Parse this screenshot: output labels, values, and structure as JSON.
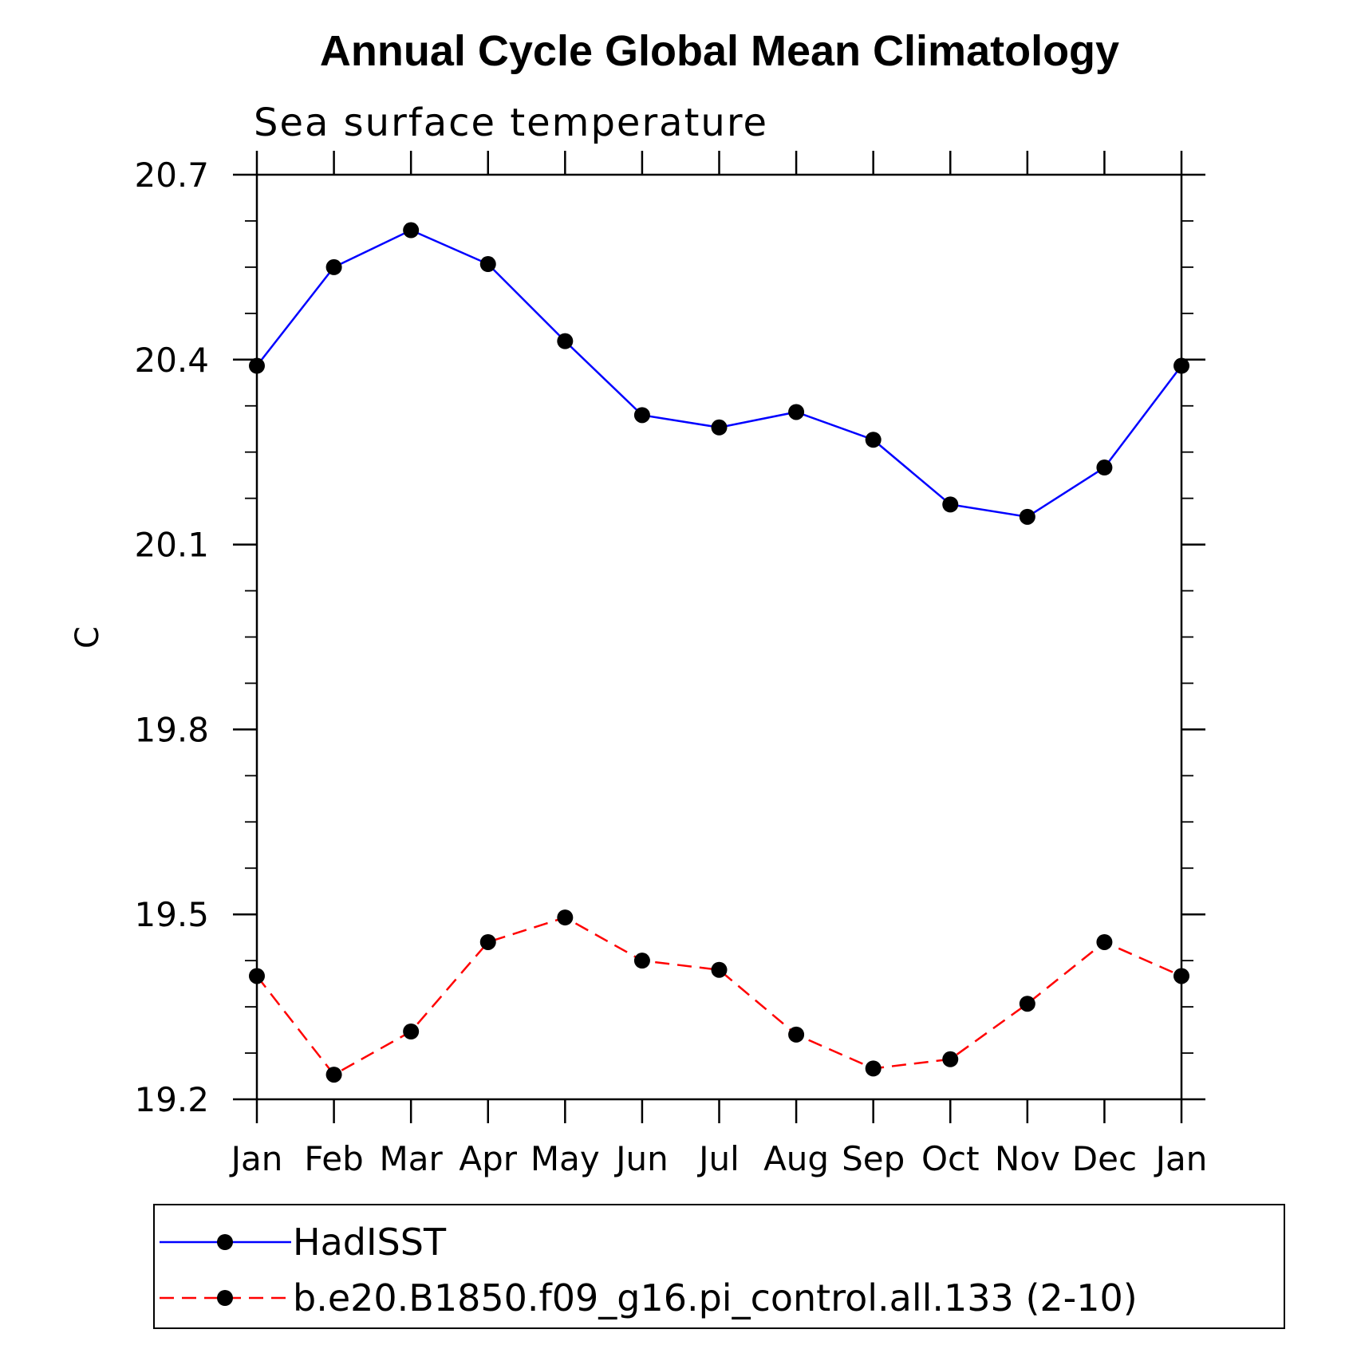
{
  "chart_data": {
    "type": "line",
    "title": "Annual Cycle Global Mean Climatology",
    "subtitle": "Sea surface temperature",
    "ylabel": "C",
    "xlabel": "",
    "categories": [
      "Jan",
      "Feb",
      "Mar",
      "Apr",
      "May",
      "Jun",
      "Jul",
      "Aug",
      "Sep",
      "Oct",
      "Nov",
      "Dec",
      "Jan"
    ],
    "ylim": [
      19.2,
      20.7
    ],
    "yticks": [
      "20.7",
      "20.4",
      "20.1",
      "19.8",
      "19.5",
      "19.2"
    ],
    "grid": false,
    "legend_position": "bottom",
    "series": [
      {
        "name": "HadISST",
        "color": "#0000ff",
        "line_style": "solid",
        "marker": "filled-circle",
        "values": [
          20.39,
          20.55,
          20.61,
          20.555,
          20.43,
          20.31,
          20.29,
          20.315,
          20.27,
          20.165,
          20.145,
          20.225,
          20.39
        ]
      },
      {
        "name": "b.e20.B1850.f09_g16.pi_control.all.133 (2-10)",
        "color": "#ff0000",
        "line_style": "dashed",
        "marker": "filled-circle",
        "values": [
          19.4,
          19.24,
          19.31,
          19.455,
          19.495,
          19.425,
          19.41,
          19.305,
          19.25,
          19.265,
          19.355,
          19.455,
          19.4
        ]
      }
    ]
  }
}
